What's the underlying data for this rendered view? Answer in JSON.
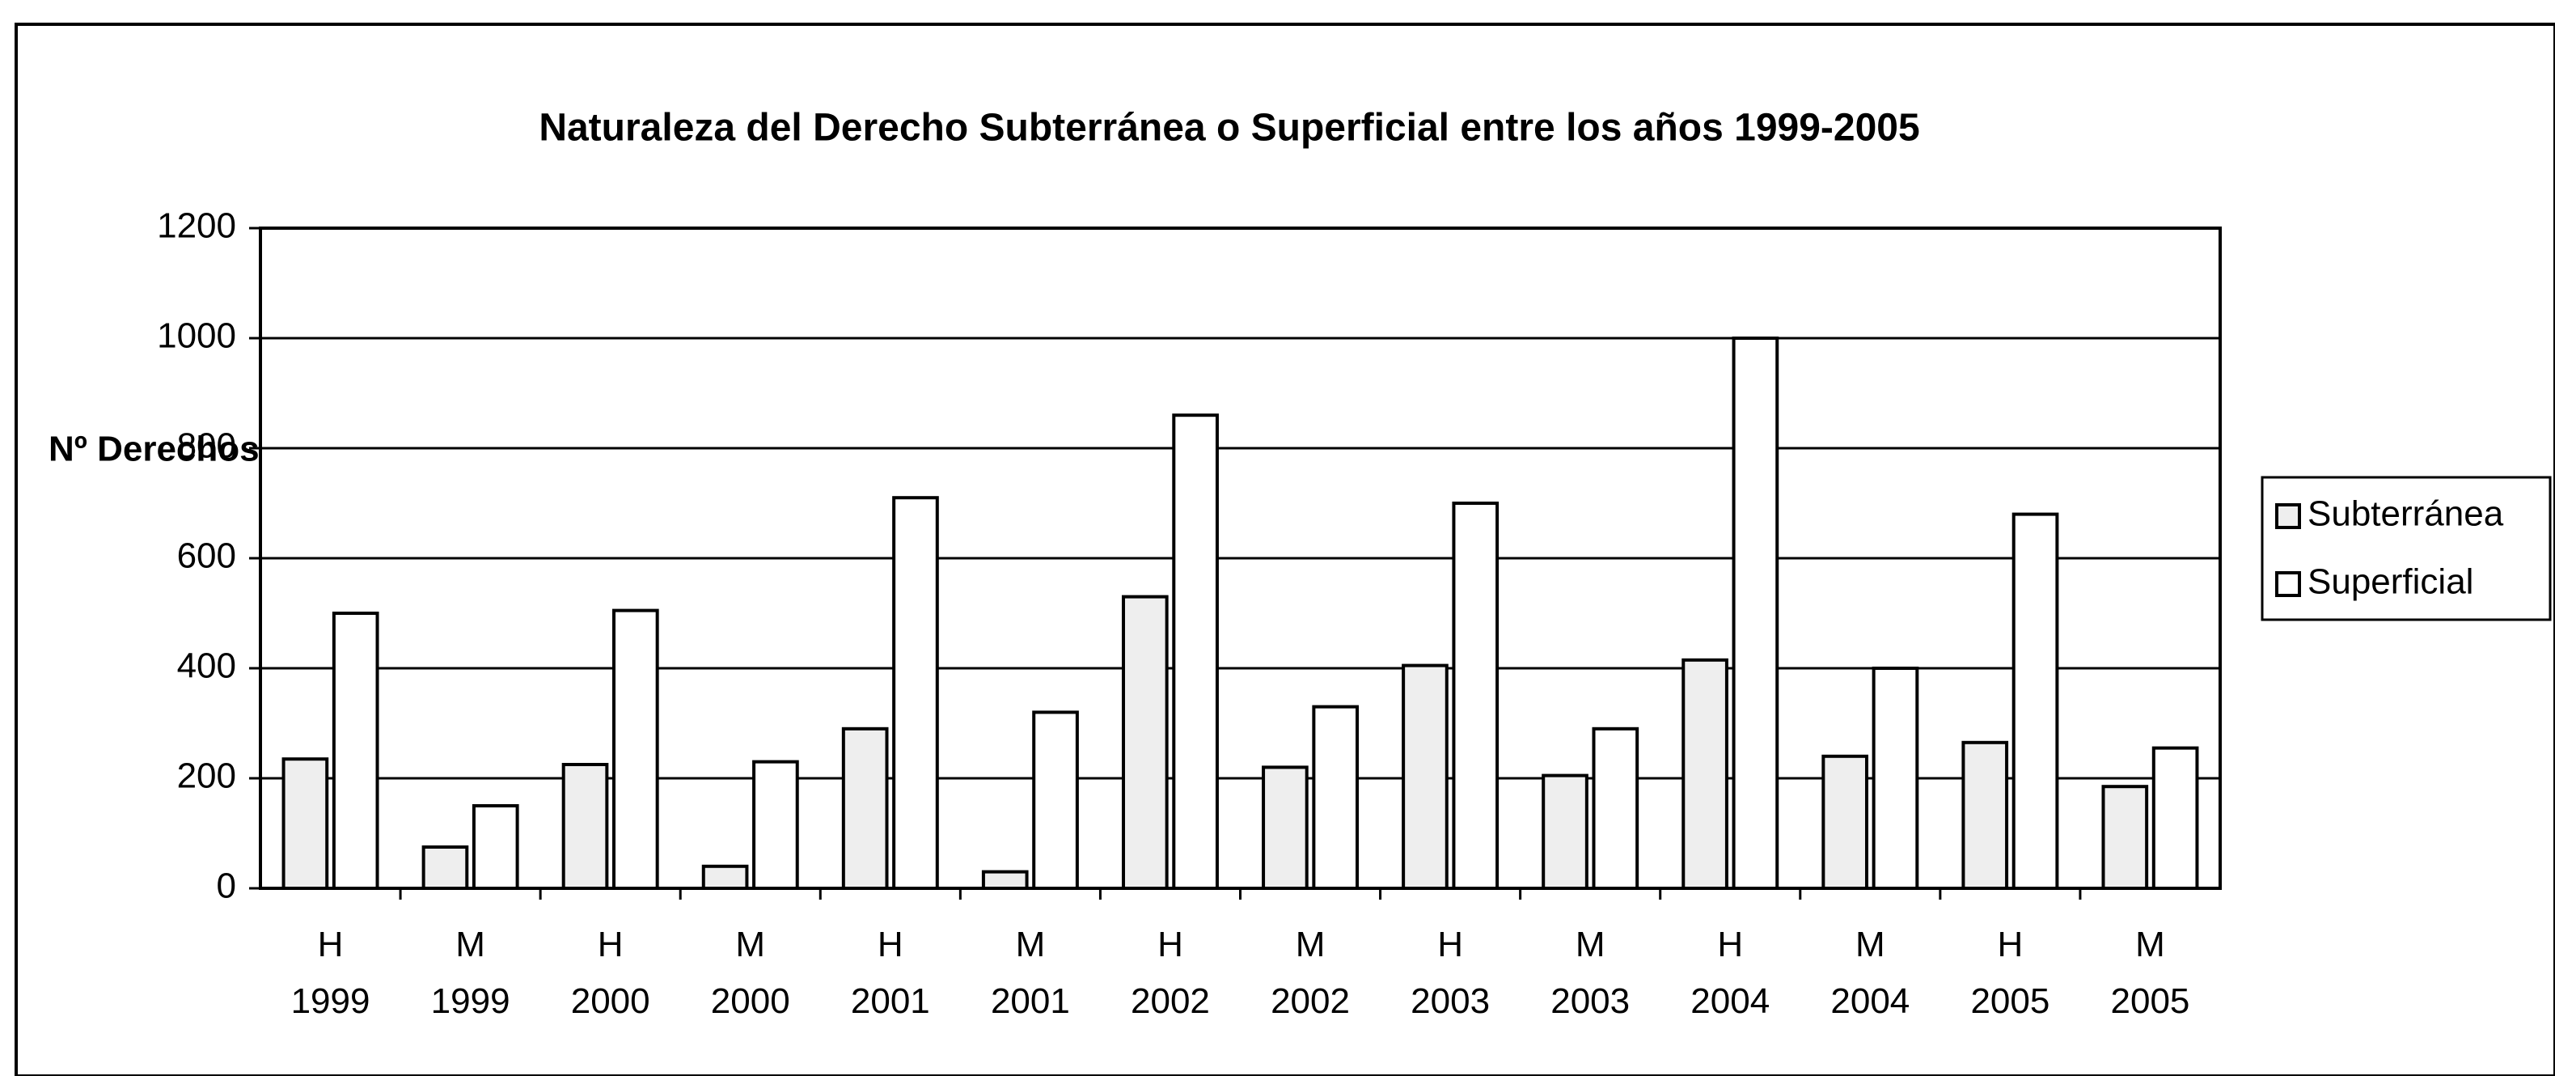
{
  "chart_data": {
    "type": "bar",
    "title": "Naturaleza del Derecho Subterránea o Superficial  entre los años 1999-2005",
    "y_label": "Nº Derechos",
    "categories": [
      [
        "H",
        "1999"
      ],
      [
        "M",
        "1999"
      ],
      [
        "H",
        "2000"
      ],
      [
        "M",
        "2000"
      ],
      [
        "H",
        "2001"
      ],
      [
        "M",
        "2001"
      ],
      [
        "H",
        "2002"
      ],
      [
        "M",
        "2002"
      ],
      [
        "H",
        "2003"
      ],
      [
        "M",
        "2003"
      ],
      [
        "H",
        "2004"
      ],
      [
        "M",
        "2004"
      ],
      [
        "H",
        "2005"
      ],
      [
        "M",
        "2005"
      ]
    ],
    "series": [
      {
        "name": "Subterránea",
        "color": "#eeeeee",
        "values": [
          235,
          75,
          225,
          40,
          290,
          30,
          530,
          220,
          405,
          205,
          415,
          240,
          265,
          185
        ]
      },
      {
        "name": "Superficial",
        "color": "#ffffff",
        "values": [
          500,
          150,
          505,
          230,
          710,
          320,
          860,
          330,
          700,
          290,
          1000,
          400,
          680,
          255
        ]
      }
    ],
    "ylim": [
      0,
      1200
    ],
    "yticks": [
      0,
      200,
      400,
      600,
      800,
      1000,
      1200
    ],
    "grid": true,
    "legend": "right"
  }
}
